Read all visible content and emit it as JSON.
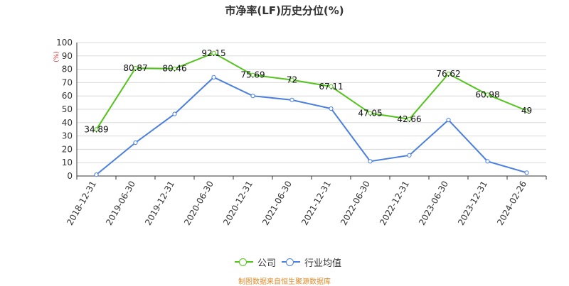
{
  "title": "市净率(LF)历史分位(%)",
  "source": "制图数据来自恒生聚源数据库",
  "chart_data": {
    "type": "line",
    "title": "市净率(LF)历史分位(%)",
    "ylabel": "(%)",
    "ylim": [
      0,
      100
    ],
    "yticks": [
      0,
      10,
      20,
      30,
      40,
      50,
      60,
      70,
      80,
      90,
      100
    ],
    "grid": true,
    "legend_position": "bottom",
    "categories": [
      "2018-12-31",
      "2019-06-30",
      "2019-12-31",
      "2020-06-30",
      "2020-12-31",
      "2021-06-30",
      "2021-12-31",
      "2022-06-30",
      "2022-12-31",
      "2023-06-30",
      "2023-12-31",
      "2024-02-26"
    ],
    "series": [
      {
        "name": "公司",
        "color": "#52c41a",
        "show_labels": true,
        "values": [
          34.89,
          80.87,
          80.46,
          92.15,
          75.69,
          72,
          67.11,
          47.05,
          42.66,
          76.62,
          60.98,
          49
        ]
      },
      {
        "name": "行业均值",
        "color": "#4a7fe0",
        "show_labels": false,
        "values": [
          1,
          25,
          46.5,
          74,
          60,
          57,
          50.5,
          11,
          15.5,
          42,
          11,
          2.5
        ]
      }
    ]
  }
}
